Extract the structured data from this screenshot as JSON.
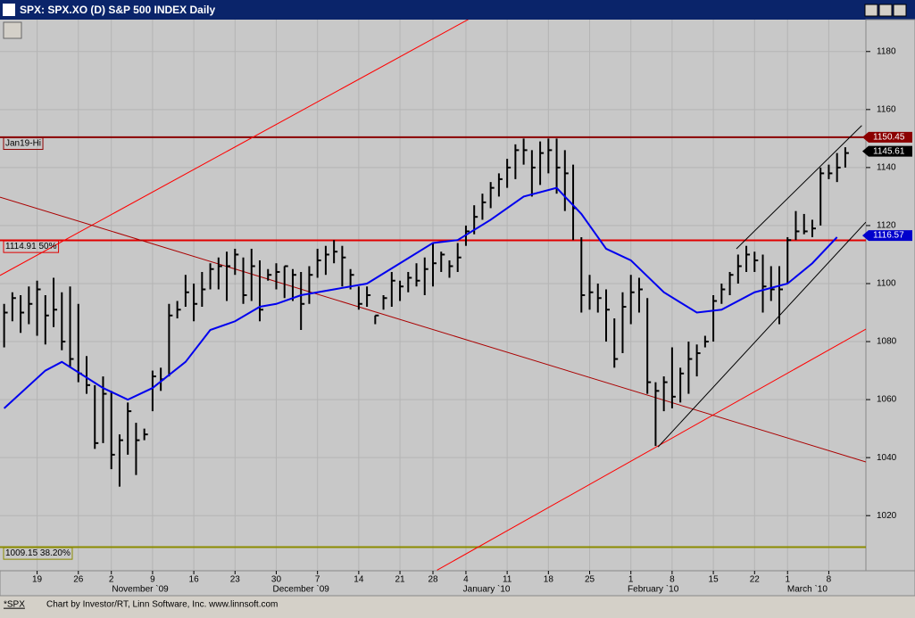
{
  "window": {
    "title": "SPX: SPX.XO (D) S&P 500 INDEX Daily",
    "status_symbol": "*SPX",
    "status_text": "Chart by Investor/RT, Linn Software, Inc. www.linnsoft.com"
  },
  "chart_data": {
    "type": "ohlc",
    "ylim": [
      1001,
      1191
    ],
    "yticks": [
      1020,
      1040,
      1060,
      1080,
      1100,
      1120,
      1140,
      1160,
      1180
    ],
    "xlim": [
      -0.5,
      104.5
    ],
    "xticks": [
      {
        "value": 4,
        "label": "19"
      },
      {
        "value": 9,
        "label": "26"
      },
      {
        "value": 13,
        "label": "2"
      },
      {
        "value": 18,
        "label": "9"
      },
      {
        "value": 23,
        "label": "16"
      },
      {
        "value": 28,
        "label": "23"
      },
      {
        "value": 33,
        "label": "30"
      },
      {
        "value": 38,
        "label": "7"
      },
      {
        "value": 43,
        "label": "14"
      },
      {
        "value": 48,
        "label": "21"
      },
      {
        "value": 52,
        "label": "28"
      },
      {
        "value": 56,
        "label": "4"
      },
      {
        "value": 61,
        "label": "11"
      },
      {
        "value": 66,
        "label": "18"
      },
      {
        "value": 71,
        "label": "25"
      },
      {
        "value": 76,
        "label": "1"
      },
      {
        "value": 81,
        "label": "8"
      },
      {
        "value": 86,
        "label": "15"
      },
      {
        "value": 91,
        "label": "22"
      },
      {
        "value": 95,
        "label": "1"
      },
      {
        "value": 100,
        "label": "8"
      }
    ],
    "month_labels": [
      {
        "value": 16.5,
        "label": "November `09"
      },
      {
        "value": 36,
        "label": "December `09"
      },
      {
        "value": 58.5,
        "label": "January `10"
      },
      {
        "value": 78.7,
        "label": "February `10"
      },
      {
        "value": 97.4,
        "label": "March `10"
      }
    ],
    "grid": true,
    "bar_color": "#000000",
    "high": [
      1093,
      1097,
      1096,
      1099,
      1101,
      1096,
      1102,
      1097,
      1099,
      1093,
      1075,
      1065,
      1068,
      1063,
      1048,
      1059,
      1052,
      1050,
      1070,
      1071,
      1093,
      1094,
      1103,
      1100,
      1104,
      1107,
      1109,
      1111,
      1112,
      1109,
      1112,
      1108,
      1105,
      1107,
      1106,
      1105,
      1104,
      1106,
      1112,
      1113,
      1115,
      1113,
      1105,
      1099,
      1099,
      1089,
      1096,
      1104,
      1101,
      1104,
      1107,
      1109,
      1114,
      1111,
      1108,
      1114,
      1120,
      1127,
      1131,
      1135,
      1138,
      1143,
      1148,
      1150,
      1146,
      1149,
      1150,
      1150,
      1146,
      1141,
      1116,
      1103,
      1100,
      1098,
      1088,
      1097,
      1103,
      1102,
      1095,
      1066,
      1068,
      1078,
      1071,
      1080,
      1079,
      1082,
      1096,
      1100,
      1104,
      1110,
      1113,
      1111,
      1110,
      1106,
      1106,
      1116,
      1125,
      1124,
      1122,
      1140,
      1141,
      1145,
      1147
    ],
    "low": [
      1078,
      1087,
      1083,
      1086,
      1082,
      1079,
      1085,
      1077,
      1071,
      1066,
      1062,
      1043,
      1045,
      1036,
      1030,
      1041,
      1034,
      1046,
      1056,
      1063,
      1068,
      1088,
      1092,
      1087,
      1092,
      1098,
      1098,
      1094,
      1103,
      1093,
      1094,
      1087,
      1101,
      1098,
      1095,
      1094,
      1084,
      1093,
      1102,
      1103,
      1107,
      1099,
      1098,
      1091,
      1092,
      1086,
      1091,
      1092,
      1094,
      1097,
      1099,
      1096,
      1099,
      1104,
      1102,
      1104,
      1113,
      1117,
      1122,
      1126,
      1130,
      1133,
      1136,
      1141,
      1130,
      1134,
      1138,
      1131,
      1125,
      1115,
      1090,
      1091,
      1090,
      1080,
      1071,
      1076,
      1086,
      1090,
      1062,
      1044,
      1056,
      1057,
      1059,
      1062,
      1068,
      1078,
      1080,
      1093,
      1096,
      1100,
      1104,
      1104,
      1090,
      1094,
      1086,
      1100,
      1115,
      1117,
      1116,
      1120,
      1136,
      1135,
      1140
    ],
    "close": [
      1090,
      1095,
      1090,
      1093,
      1098,
      1089,
      1091,
      1080,
      1074,
      1069,
      1065,
      1045,
      1062,
      1041,
      1046,
      1056,
      1046,
      1048,
      1068,
      1067,
      1089,
      1091,
      1097,
      1093,
      1098,
      1105,
      1106,
      1106,
      1110,
      1096,
      1106,
      1091,
      1103,
      1104,
      1106,
      1103,
      1093,
      1103,
      1108,
      1110,
      1111,
      1109,
      1103,
      1093,
      1096,
      1089,
      1095,
      1101,
      1099,
      1102,
      1101,
      1105,
      1107,
      1110,
      1106,
      1109,
      1118,
      1123,
      1128,
      1133,
      1136,
      1140,
      1146,
      1146,
      1140,
      1145,
      1146,
      1140,
      1138,
      1126,
      1096,
      1097,
      1095,
      1091,
      1074,
      1092,
      1097,
      1098,
      1066,
      1063,
      1066,
      1061,
      1069,
      1074,
      1076,
      1080,
      1094,
      1098,
      1103,
      1106,
      1110,
      1108,
      1099,
      1098,
      1098,
      1115,
      1118,
      1118,
      1119,
      1138,
      1138,
      1140,
      1145
    ],
    "series": [
      {
        "color": "#0000ee",
        "x": [
          0,
          5,
          7,
          12,
          15,
          18,
          22,
          25,
          28,
          31,
          33,
          36,
          40,
          44,
          48,
          52,
          55,
          59,
          63,
          67,
          70,
          73,
          76,
          80,
          84,
          87,
          91,
          95,
          98,
          101
        ],
        "values": [
          1057,
          1070,
          1073,
          1064,
          1060,
          1064,
          1073,
          1084,
          1087,
          1092,
          1093,
          1096,
          1098,
          1100,
          1107,
          1114,
          1115,
          1122,
          1130,
          1133,
          1124,
          1112,
          1108,
          1097,
          1090,
          1091,
          1097,
          1100,
          1107,
          1116
        ]
      }
    ],
    "trendlines": [
      {
        "color": "#ff0000",
        "x": [
          -0.5,
          56.5
        ],
        "values": [
          1102.8,
          1191.4
        ]
      },
      {
        "color": "#aa0000",
        "x": [
          -0.5,
          104.5
        ],
        "values": [
          1129.8,
          1038.5
        ]
      },
      {
        "color": "#ff0000",
        "x": [
          52.5,
          104.5
        ],
        "values": [
          1001.2,
          1084.3
        ]
      },
      {
        "color": "#000000",
        "x": [
          79.3,
          104.5
        ],
        "values": [
          1043.7,
          1121.2
        ]
      },
      {
        "color": "#000000",
        "x": [
          88.8,
          104.0
        ],
        "values": [
          1112,
          1154.5
        ]
      }
    ],
    "levels": [
      {
        "value": 1150.45,
        "label": "Jan19-Hi",
        "color": "#8b0000"
      },
      {
        "value": 1114.91,
        "label": "1114.91 50%",
        "color": "#e00000"
      },
      {
        "value": 1009.15,
        "label": "1009.15 38.20%",
        "color": "#8b8b00"
      }
    ],
    "price_tags": [
      {
        "value": 1150.45,
        "color": "#8b0000"
      },
      {
        "value": 1145.61,
        "color": "#000000"
      },
      {
        "value": 1116.57,
        "color": "#0000cc"
      }
    ]
  }
}
